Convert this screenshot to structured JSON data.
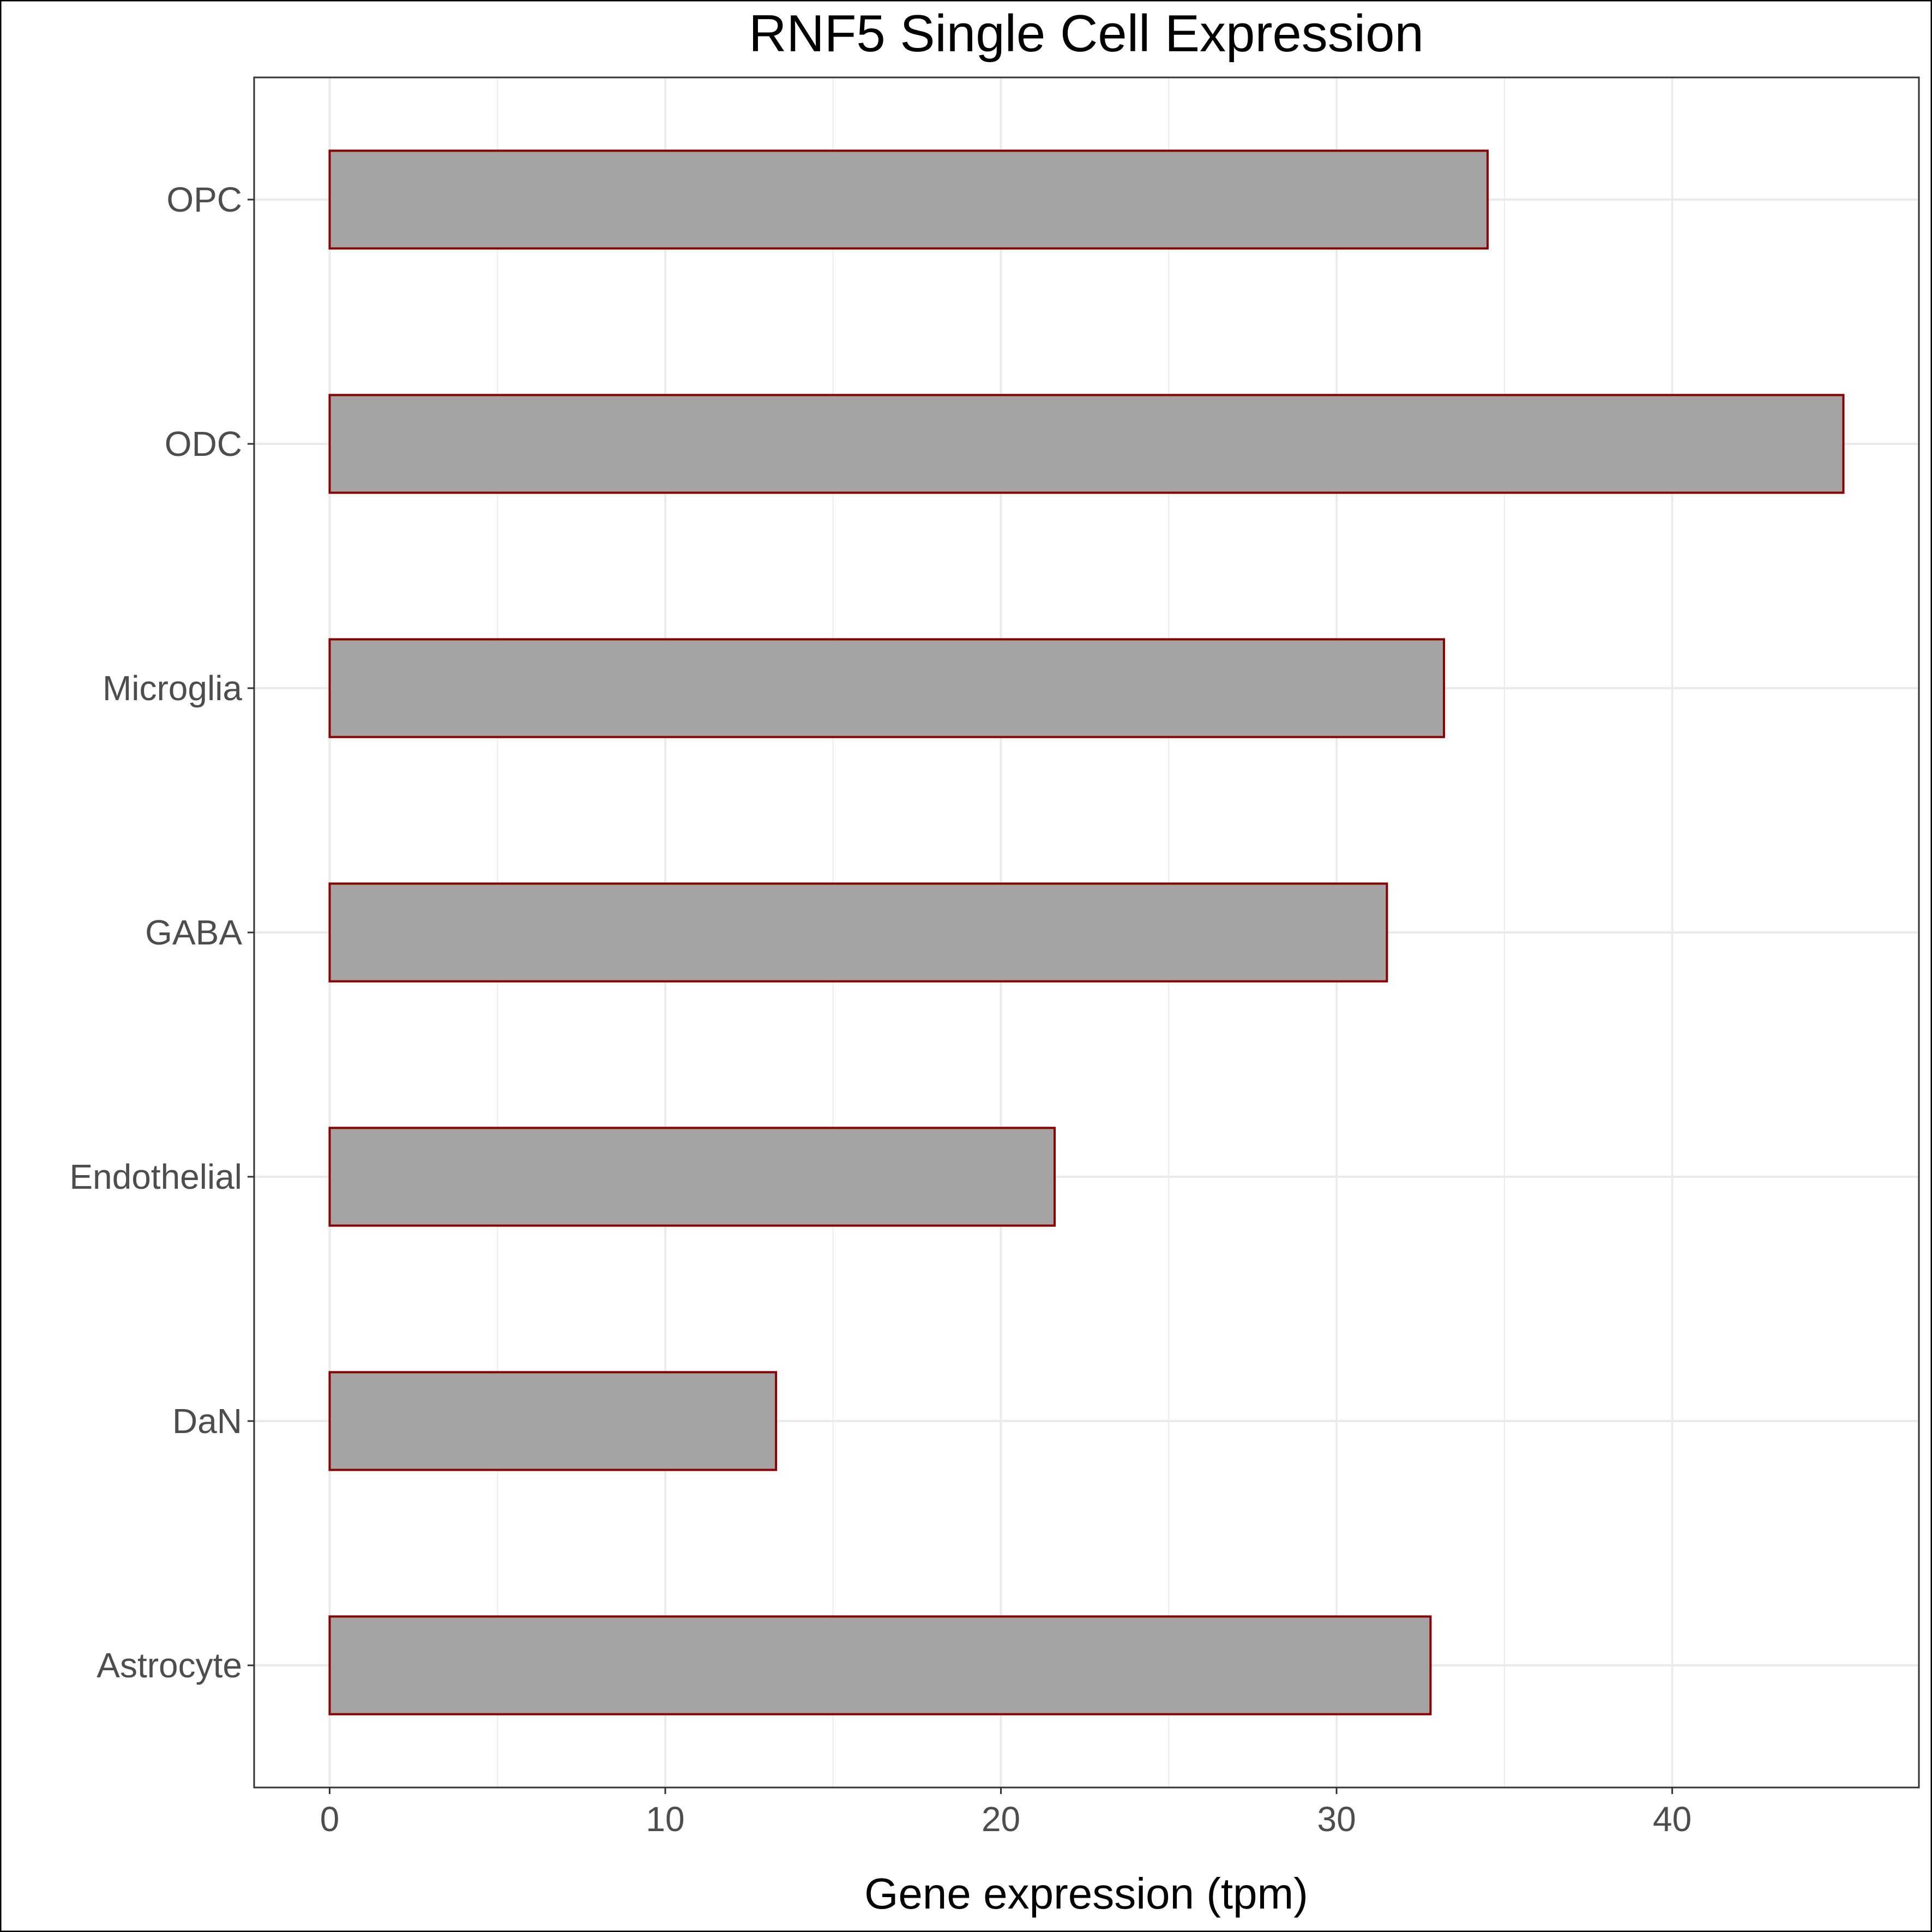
{
  "chart_data": {
    "type": "bar",
    "orientation": "horizontal",
    "title": "RNF5 Single Cell Expression",
    "xlabel": "Gene expression (tpm)",
    "ylabel": "",
    "categories": [
      "Astrocyte",
      "DaN",
      "Endothelial",
      "GABA",
      "Microglia",
      "ODC",
      "OPC"
    ],
    "values": [
      32.8,
      13.3,
      21.6,
      31.5,
      33.2,
      45.1,
      34.5
    ],
    "xlim": [
      -2.25,
      47.35
    ],
    "xticks": [
      0,
      10,
      20,
      30,
      40
    ],
    "grid": true,
    "legend": "none",
    "colors": {
      "bar_fill": "#a3a3a3",
      "bar_stroke": "#8b0000",
      "grid": "#ebebeb",
      "panel_border": "#333333"
    }
  }
}
